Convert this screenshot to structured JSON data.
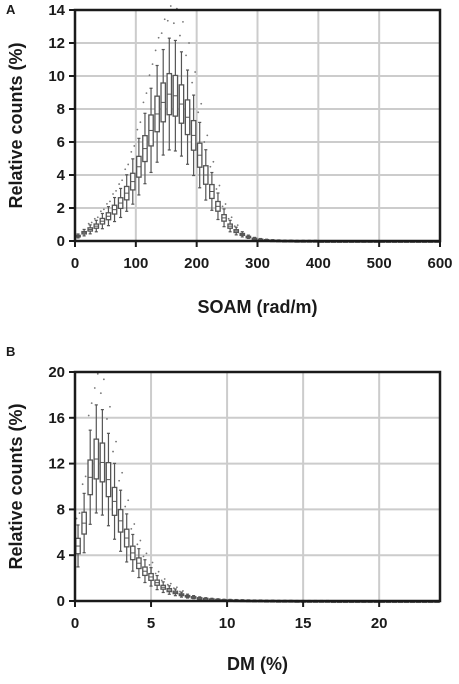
{
  "chart_data": [
    {
      "panel": "A",
      "type": "box",
      "xlabel": "SOAM (rad/m)",
      "ylabel": "Relative counts (%)",
      "xlim": [
        0,
        600
      ],
      "ylim": [
        0,
        14
      ],
      "xticks": [
        0,
        100,
        200,
        300,
        400,
        500,
        600
      ],
      "yticks": [
        0,
        2,
        4,
        6,
        8,
        10,
        12,
        14
      ],
      "grid": true,
      "box_spacing": 10,
      "medians": [
        0.3,
        0.5,
        0.7,
        0.9,
        1.2,
        1.5,
        1.9,
        2.3,
        2.9,
        3.6,
        4.5,
        5.6,
        6.7,
        7.7,
        8.4,
        8.9,
        8.8,
        8.3,
        7.5,
        6.4,
        5.2,
        4.0,
        3.0,
        2.1,
        1.4,
        0.9,
        0.6,
        0.4,
        0.25,
        0.15,
        0.1,
        0.07,
        0.05,
        0.04,
        0.03,
        0.03,
        0.02,
        0.02,
        0.02,
        0.02,
        0.01,
        0.01,
        0.01,
        0.01,
        0.01,
        0.01,
        0.01,
        0.01,
        0.01,
        0.01,
        0.01,
        0.01,
        0.01,
        0.01,
        0.01,
        0.01,
        0.01,
        0.01,
        0.01,
        0.01
      ]
    },
    {
      "panel": "B",
      "type": "box",
      "xlabel": "DM (%)",
      "ylabel": "Relative counts (%)",
      "xlim": [
        0,
        24
      ],
      "ylim": [
        0,
        20
      ],
      "xticks": [
        0,
        5,
        10,
        15,
        20
      ],
      "yticks": [
        0,
        4,
        8,
        12,
        16,
        20
      ],
      "grid": true,
      "box_spacing": 0.4,
      "medians": [
        4.8,
        6.8,
        10.8,
        12.4,
        12.1,
        10.6,
        8.7,
        7.0,
        5.5,
        4.2,
        3.3,
        2.6,
        2.1,
        1.6,
        1.2,
        0.95,
        0.75,
        0.55,
        0.42,
        0.33,
        0.25,
        0.2,
        0.16,
        0.13,
        0.1,
        0.09,
        0.08,
        0.07,
        0.06,
        0.05,
        0.05,
        0.04,
        0.04,
        0.03,
        0.03,
        0.03,
        0.02,
        0.02,
        0.02,
        0.02,
        0.02,
        0.02,
        0.01,
        0.01,
        0.01,
        0.01,
        0.01,
        0.01,
        0.01,
        0.01,
        0.01,
        0.01,
        0.01,
        0.01,
        0.01,
        0.01,
        0.01,
        0.01,
        0.01,
        0.01
      ]
    }
  ]
}
